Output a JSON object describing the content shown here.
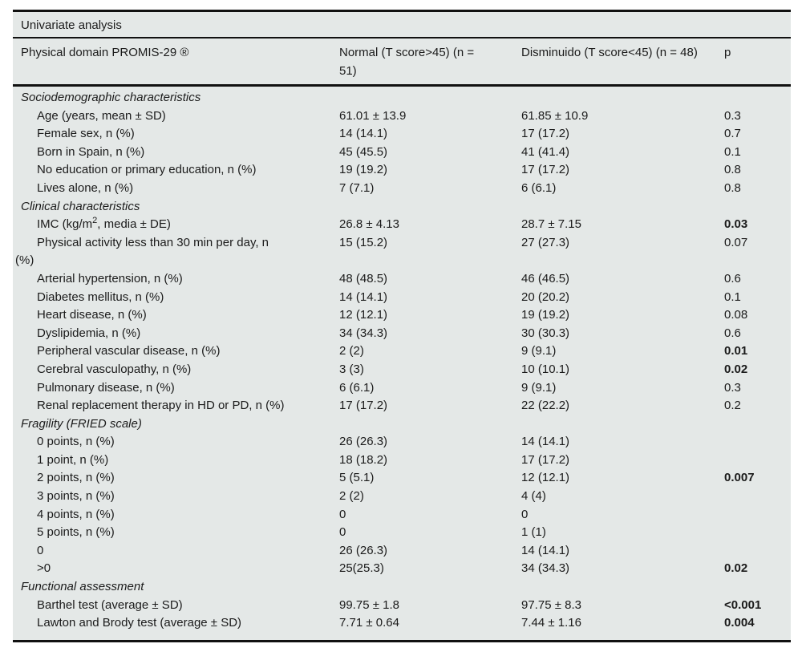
{
  "table": {
    "title": "Univariate analysis",
    "colors": {
      "background": "#e4e8e7",
      "rule": "#111111",
      "text": "#1b1b1b"
    },
    "columns": [
      {
        "lines": [
          "Physical domain PROMIS-29 ®"
        ]
      },
      {
        "lines": [
          "Normal (T score>45) (n =",
          "51)"
        ]
      },
      {
        "lines": [
          "Disminuido (T score<45) (n = 48)"
        ]
      },
      {
        "lines": [
          "p"
        ]
      }
    ],
    "rows": [
      {
        "type": "section",
        "label": "Sociodemographic characteristics"
      },
      {
        "type": "item",
        "label": "Age (years, mean ± SD)",
        "normal": "61.01 ± 13.9",
        "disminuido": "61.85 ± 10.9",
        "p": "0.3",
        "p_bold": false
      },
      {
        "type": "item",
        "label": "Female sex, n (%)",
        "normal": "14 (14.1)",
        "disminuido": "17 (17.2)",
        "p": "0.7",
        "p_bold": false
      },
      {
        "type": "item",
        "label": "Born in Spain, n (%)",
        "normal": "45 (45.5)",
        "disminuido": "41 (41.4)",
        "p": "0.1",
        "p_bold": false
      },
      {
        "type": "item",
        "label": "No education or primary education, n (%)",
        "normal": "19 (19.2)",
        "disminuido": "17 (17.2)",
        "p": "0.8",
        "p_bold": false
      },
      {
        "type": "item",
        "label": "Lives alone, n (%)",
        "normal": "7 (7.1)",
        "disminuido": "6 (6.1)",
        "p": "0.8",
        "p_bold": false
      },
      {
        "type": "section",
        "label": "Clinical characteristics"
      },
      {
        "type": "item",
        "label_parts": [
          "IMC (kg/m",
          {
            "sup": "2"
          },
          ", media ± DE)"
        ],
        "normal": "26.8 ± 4.13",
        "disminuido": "28.7 ± 7.15",
        "p": "0.03",
        "p_bold": true
      },
      {
        "type": "item",
        "label_parts": [
          "Physical activity less than 30 min per day, n",
          {
            "br": true
          },
          "(%)"
        ],
        "normal": "15 (15.2)",
        "disminuido": "27 (27.3)",
        "p": "0.07",
        "p_bold": false
      },
      {
        "type": "item",
        "label": "Arterial hypertension, n (%)",
        "normal": "48 (48.5)",
        "disminuido": "46 (46.5)",
        "p": "0.6",
        "p_bold": false
      },
      {
        "type": "item",
        "label": "Diabetes mellitus, n (%)",
        "normal": "14 (14.1)",
        "disminuido": "20 (20.2)",
        "p": "0.1",
        "p_bold": false
      },
      {
        "type": "item",
        "label": "Heart disease, n (%)",
        "normal": "12 (12.1)",
        "disminuido": "19 (19.2)",
        "p": "0.08",
        "p_bold": false
      },
      {
        "type": "item",
        "label": "Dyslipidemia, n (%)",
        "normal": "34 (34.3)",
        "disminuido": "30 (30.3)",
        "p": "0.6",
        "p_bold": false
      },
      {
        "type": "item",
        "label": "Peripheral vascular disease, n (%)",
        "normal": "2 (2)",
        "disminuido": "9 (9.1)",
        "p": "0.01",
        "p_bold": true
      },
      {
        "type": "item",
        "label": "Cerebral vasculopathy, n (%)",
        "normal": "3 (3)",
        "disminuido": "10 (10.1)",
        "p": "0.02",
        "p_bold": true
      },
      {
        "type": "item",
        "label": "Pulmonary disease, n (%)",
        "normal": "6 (6.1)",
        "disminuido": "9 (9.1)",
        "p": "0.3",
        "p_bold": false
      },
      {
        "type": "item",
        "label": "Renal replacement therapy in HD or PD, n (%)",
        "normal": "17 (17.2)",
        "disminuido": "22 (22.2)",
        "p": "0.2",
        "p_bold": false
      },
      {
        "type": "section",
        "label": "Fragility (FRIED scale)"
      },
      {
        "type": "item",
        "label": "0 points, n (%)",
        "normal": "26 (26.3)",
        "disminuido": "14 (14.1)",
        "p": "",
        "p_bold": false
      },
      {
        "type": "item",
        "label": "1 point, n (%)",
        "normal": "18 (18.2)",
        "disminuido": "17 (17.2)",
        "p": "",
        "p_bold": false
      },
      {
        "type": "item",
        "label": "2 points, n (%)",
        "normal": "5 (5.1)",
        "disminuido": "12 (12.1)",
        "p": "0.007",
        "p_bold": true
      },
      {
        "type": "item",
        "label": "3 points, n (%)",
        "normal": "2 (2)",
        "disminuido": "4 (4)",
        "p": "",
        "p_bold": false
      },
      {
        "type": "item",
        "label": "4 points, n (%)",
        "normal": "0",
        "disminuido": "0",
        "p": "",
        "p_bold": false
      },
      {
        "type": "item",
        "label": "5 points, n (%)",
        "normal": "0",
        "disminuido": "1 (1)",
        "p": "",
        "p_bold": false
      },
      {
        "type": "item",
        "label": "0",
        "normal": "26 (26.3)",
        "disminuido": "14 (14.1)",
        "p": "",
        "p_bold": false
      },
      {
        "type": "item",
        "label": ">0",
        "normal": "25(25.3)",
        "disminuido": "34 (34.3)",
        "p": "0.02",
        "p_bold": true
      },
      {
        "type": "section",
        "label": "Functional assessment"
      },
      {
        "type": "item",
        "label": "Barthel test (average ± SD)",
        "normal": "99.75 ± 1.8",
        "disminuido": "97.75 ± 8.3",
        "p": "<0.001",
        "p_bold": true
      },
      {
        "type": "item",
        "label": "Lawton and Brody test (average ± SD)",
        "normal": "7.71 ± 0.64",
        "disminuido": "7.44 ± 1.16",
        "p": "0.004",
        "p_bold": true
      }
    ]
  }
}
